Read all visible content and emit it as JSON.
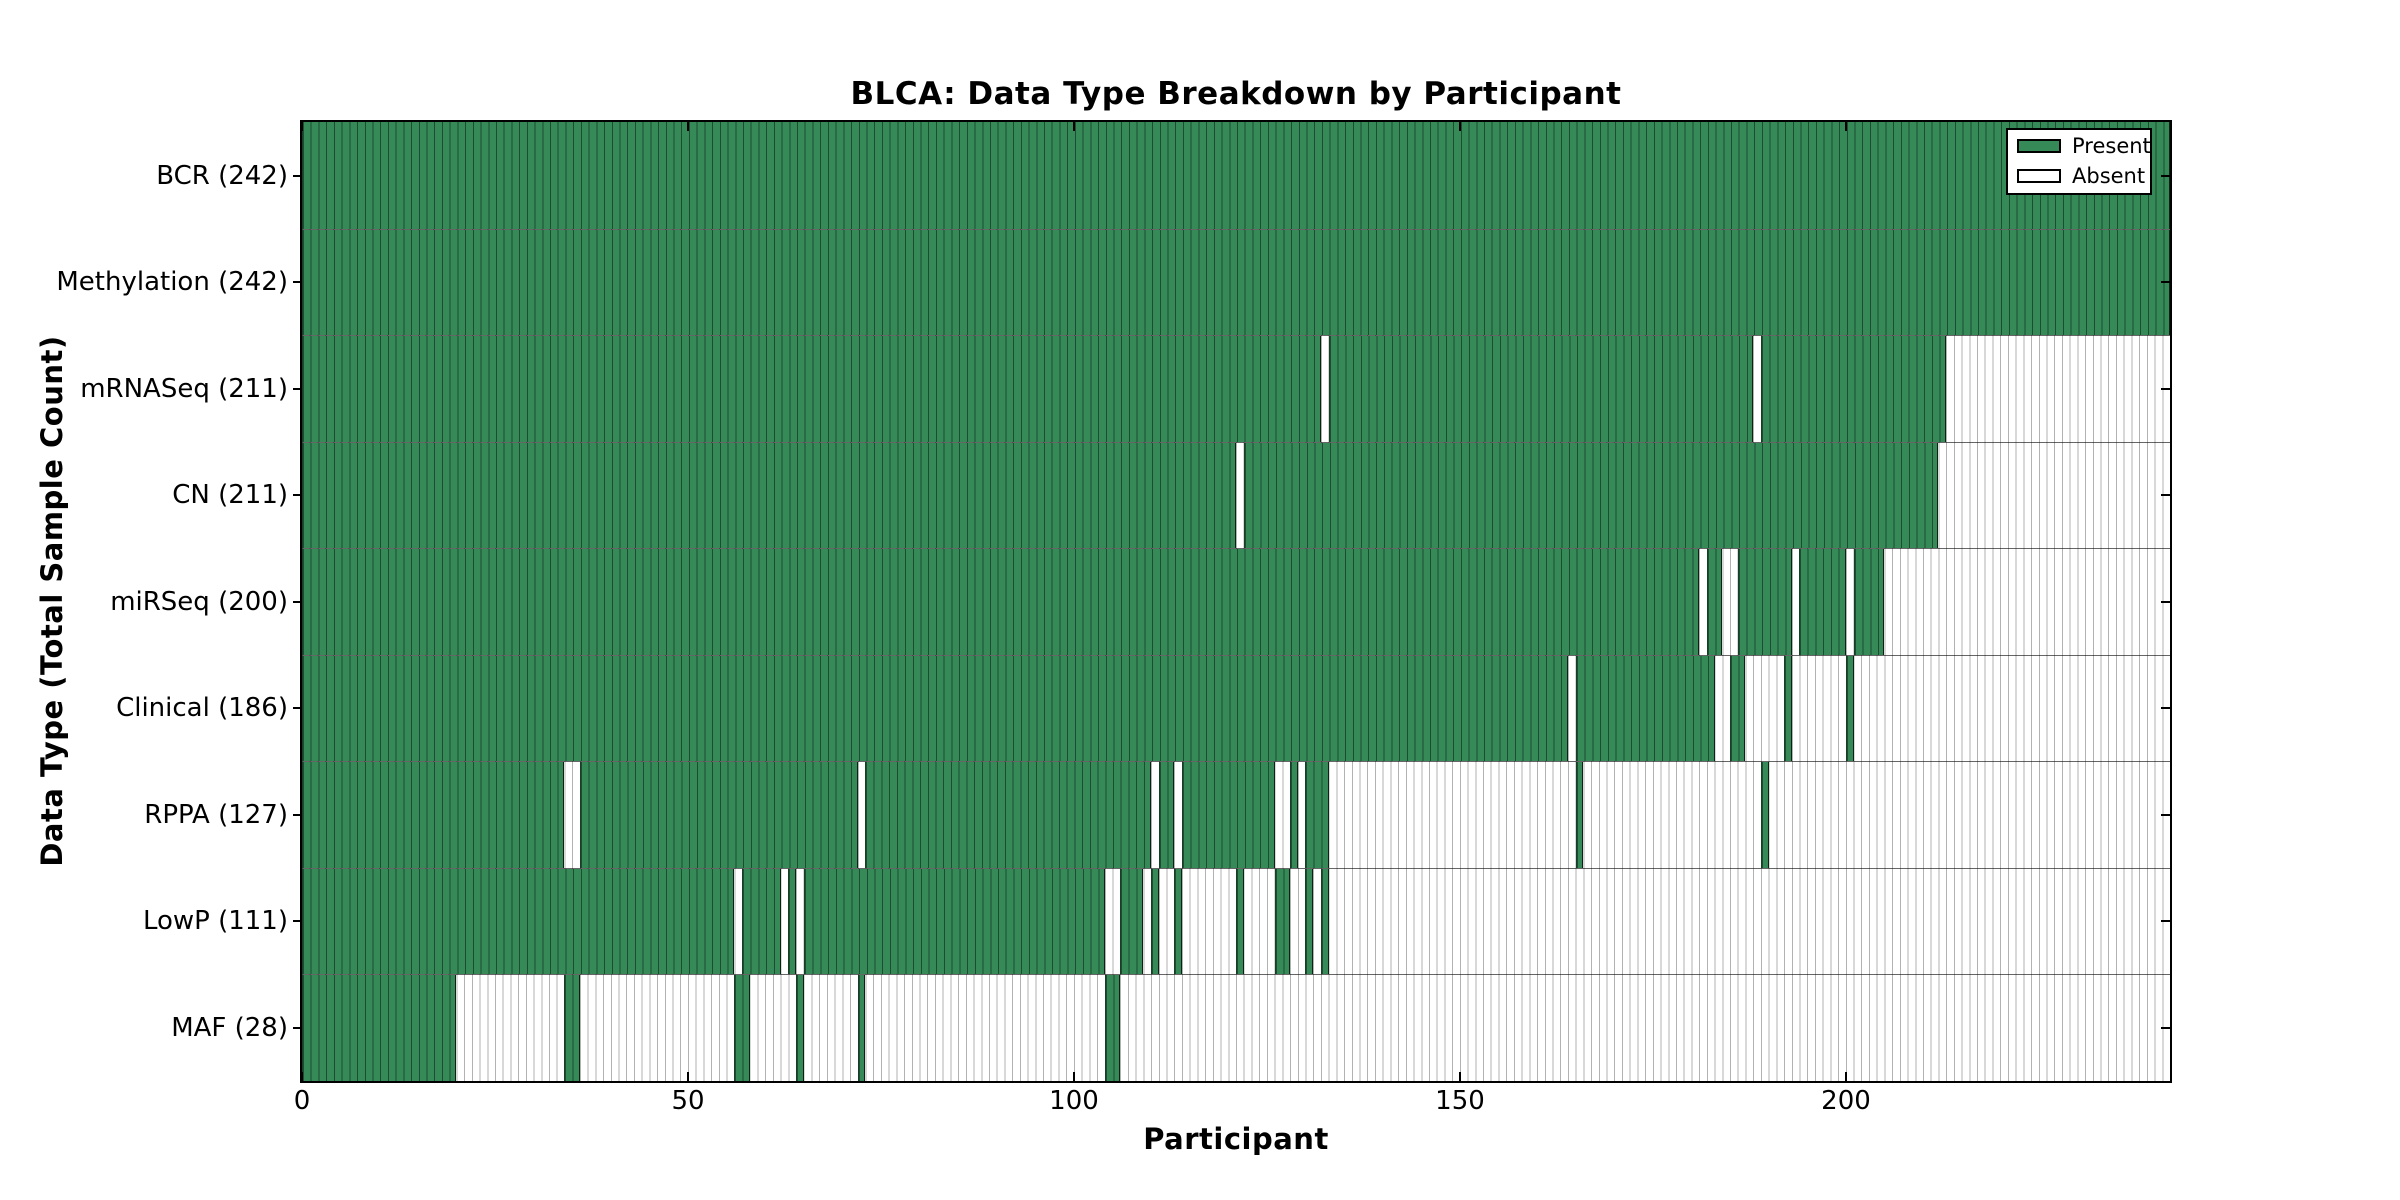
{
  "chart_data": {
    "type": "heatmap",
    "title": "BLCA: Data Type Breakdown by Participant",
    "xlabel": "Participant",
    "ylabel": "Data Type (Total Sample Count)",
    "x_ticks": [
      0,
      50,
      100,
      150,
      200
    ],
    "x_range": [
      0,
      242
    ],
    "n_participants": 242,
    "grid": "per-participant cell borders",
    "legend_position": "upper right inside plot",
    "colors": {
      "present": "#358a58",
      "absent": "#ffffff"
    },
    "legend": [
      {
        "label": "Present",
        "color_key": "present"
      },
      {
        "label": "Absent",
        "color_key": "absent"
      }
    ],
    "rows": [
      {
        "name": "BCR",
        "label": "BCR (242)",
        "count": 242,
        "present_ranges": [
          [
            0,
            241
          ]
        ]
      },
      {
        "name": "Methylation",
        "label": "Methylation (242)",
        "count": 242,
        "present_ranges": [
          [
            0,
            241
          ]
        ]
      },
      {
        "name": "mRNASeq",
        "label": "mRNASeq (211)",
        "count": 211,
        "present_ranges": [
          [
            0,
            131
          ],
          [
            133,
            187
          ],
          [
            189,
            212
          ]
        ]
      },
      {
        "name": "CN",
        "label": "CN (211)",
        "count": 211,
        "present_ranges": [
          [
            0,
            120
          ],
          [
            122,
            211
          ]
        ]
      },
      {
        "name": "miRSeq",
        "label": "miRSeq (200)",
        "count": 200,
        "present_ranges": [
          [
            0,
            180
          ],
          [
            182,
            183
          ],
          [
            186,
            192
          ],
          [
            194,
            199
          ],
          [
            201,
            204
          ]
        ]
      },
      {
        "name": "Clinical",
        "label": "Clinical (186)",
        "count": 186,
        "present_ranges": [
          [
            0,
            163
          ],
          [
            165,
            182
          ],
          [
            185,
            186
          ],
          [
            192,
            192
          ],
          [
            200,
            200
          ]
        ]
      },
      {
        "name": "RPPA",
        "label": "RPPA (127)",
        "count": 127,
        "present_ranges": [
          [
            0,
            33
          ],
          [
            36,
            71
          ],
          [
            73,
            109
          ],
          [
            111,
            112
          ],
          [
            114,
            125
          ],
          [
            128,
            128
          ],
          [
            130,
            132
          ],
          [
            165,
            165
          ],
          [
            189,
            189
          ]
        ]
      },
      {
        "name": "LowP",
        "label": "LowP (111)",
        "count": 111,
        "present_ranges": [
          [
            0,
            55
          ],
          [
            57,
            61
          ],
          [
            63,
            63
          ],
          [
            65,
            103
          ],
          [
            106,
            108
          ],
          [
            110,
            110
          ],
          [
            113,
            113
          ],
          [
            121,
            121
          ],
          [
            126,
            127
          ],
          [
            130,
            130
          ],
          [
            132,
            132
          ]
        ]
      },
      {
        "name": "MAF",
        "label": "MAF (28)",
        "count": 28,
        "present_ranges": [
          [
            0,
            19
          ],
          [
            34,
            35
          ],
          [
            56,
            57
          ],
          [
            64,
            64
          ],
          [
            72,
            72
          ],
          [
            104,
            105
          ]
        ]
      }
    ]
  }
}
